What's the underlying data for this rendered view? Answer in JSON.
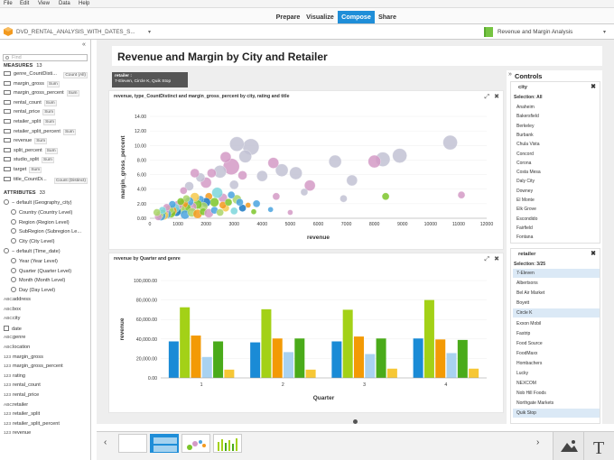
{
  "menu": [
    "File",
    "Edit",
    "View",
    "Data",
    "Help"
  ],
  "nav": {
    "tabs": [
      {
        "label": "Prepare",
        "active": false
      },
      {
        "label": "Visualize",
        "active": false
      },
      {
        "label": "Compose",
        "active": true
      },
      {
        "label": "Share",
        "active": false
      }
    ]
  },
  "doc": {
    "title": "DVD_RENTAL_ANALYSIS_WITH_DATES_S...",
    "story": "Revenue and Margin Analysis"
  },
  "left": {
    "search_placeholder": "Find",
    "measures_label": "MEASURES",
    "measures_count": "13",
    "measures": [
      {
        "name": "genre_CountDisti...",
        "agg": "Count (All)"
      },
      {
        "name": "margin_gross",
        "agg": "Sum"
      },
      {
        "name": "margin_gross_percent",
        "agg": "Sum"
      },
      {
        "name": "rental_count",
        "agg": "Sum"
      },
      {
        "name": "rental_price",
        "agg": "Sum"
      },
      {
        "name": "retailer_split",
        "agg": "Sum"
      },
      {
        "name": "retailer_split_percent",
        "agg": "Sum"
      },
      {
        "name": "revenue",
        "agg": "Sum"
      },
      {
        "name": "split_percent",
        "agg": "Sum"
      },
      {
        "name": "studio_split",
        "agg": "Sum"
      },
      {
        "name": "target",
        "agg": "Sum"
      },
      {
        "name": "title_CountDi...",
        "agg": "Count (Distinct)"
      }
    ],
    "attributes_label": "ATTRIBUTES",
    "attributes_count": "33",
    "geo_group": "default (Geography_city)",
    "geo_items": [
      "Country (Country Level)",
      "Region (Region Level)",
      "SubRegion (Subregion Le...",
      "City (City Level)"
    ],
    "time_group": "default (Time_date)",
    "time_items": [
      "Year (Year Level)",
      "Quarter (Quarter Level)",
      "Month (Month Level)",
      "Day (Day Level)"
    ],
    "attrs": [
      {
        "t": "ABC",
        "name": "address"
      },
      {
        "t": "ABC",
        "name": "box"
      },
      {
        "t": "ABC",
        "name": "city"
      },
      {
        "t": "cal",
        "name": "date"
      },
      {
        "t": "ABC",
        "name": "genre"
      },
      {
        "t": "ABC",
        "name": "location"
      },
      {
        "t": "123",
        "name": "margin_gross"
      },
      {
        "t": "123",
        "name": "margin_gross_percent"
      },
      {
        "t": "123",
        "name": "rating"
      },
      {
        "t": "123",
        "name": "rental_count"
      },
      {
        "t": "123",
        "name": "rental_price"
      },
      {
        "t": "ABC",
        "name": "retailer"
      },
      {
        "t": "123",
        "name": "retailer_split"
      },
      {
        "t": "123",
        "name": "retailer_split_percent"
      },
      {
        "t": "123",
        "name": "revenue"
      }
    ]
  },
  "story_title": "Revenue and Margin by City and Retailer",
  "tooltip": {
    "line1": "retailer :",
    "line2": "7-Eleven, Circle K, Quik Stop"
  },
  "scatter": {
    "title": "revenue, type_CountDistinct and margin_gross_percent by city, rating and title",
    "chart_data": {
      "type": "scatter",
      "xlabel": "revenue",
      "ylabel": "margin_gross_percent",
      "xlim": [
        0,
        12000
      ],
      "ylim": [
        0,
        14
      ],
      "xticks": [
        "0",
        "1000",
        "2000",
        "3000",
        "4000",
        "5000",
        "6000",
        "7000",
        "8000",
        "9000",
        "10000",
        "11000",
        "12000"
      ],
      "yticks": [
        "0.00",
        "2.00",
        "4.00",
        "6.00",
        "8.00",
        "10.00",
        "12.00",
        "14.00"
      ],
      "points": [
        [
          10700,
          10.4,
          8,
          "#c2c2d4"
        ],
        [
          8900,
          8.6,
          8,
          "#c2c2d4"
        ],
        [
          8300,
          8.1,
          8,
          "#c2c2d4"
        ],
        [
          8000,
          7.8,
          7,
          "#d49ac6"
        ],
        [
          7200,
          5.2,
          6,
          "#c2c2d4"
        ],
        [
          6600,
          7.8,
          7,
          "#c2c2d4"
        ],
        [
          5700,
          4.5,
          6,
          "#d49ac6"
        ],
        [
          5200,
          6.2,
          7,
          "#c2c2d4"
        ],
        [
          4700,
          6.6,
          7,
          "#c2c2d4"
        ],
        [
          4400,
          7.6,
          6,
          "#d49ac6"
        ],
        [
          4000,
          5.8,
          6,
          "#c2c2d4"
        ],
        [
          3600,
          9.8,
          9,
          "#c2c2d4"
        ],
        [
          3400,
          8.5,
          7,
          "#c2c2d4"
        ],
        [
          3100,
          10.2,
          8,
          "#c2c2d4"
        ],
        [
          2900,
          7.1,
          9,
          "#d49ac6"
        ],
        [
          2700,
          8.4,
          6,
          "#d49ac6"
        ],
        [
          2500,
          6.4,
          7,
          "#c2c2d4"
        ],
        [
          2200,
          6.2,
          5,
          "#d49ac6"
        ],
        [
          2000,
          4.9,
          6,
          "#d49ac6"
        ],
        [
          1800,
          5.6,
          5,
          "#c2c2d4"
        ],
        [
          1600,
          6.2,
          5,
          "#d49ac6"
        ],
        [
          1400,
          4.4,
          5,
          "#c2c2d4"
        ],
        [
          1200,
          3.8,
          4,
          "#d49ac6"
        ],
        [
          3000,
          4.6,
          5,
          "#c2c2d4"
        ],
        [
          3300,
          5.9,
          5,
          "#d49ac6"
        ],
        [
          8400,
          3.0,
          4,
          "#7cc52a"
        ],
        [
          6900,
          2.7,
          4,
          "#c2c2d4"
        ],
        [
          11100,
          3.2,
          4,
          "#d49ac6"
        ],
        [
          4500,
          3.0,
          4,
          "#d49ac6"
        ],
        [
          5500,
          3.6,
          4,
          "#c2c2d4"
        ],
        [
          3800,
          2.0,
          4,
          "#4aa3df"
        ],
        [
          3500,
          1.8,
          3,
          "#f39a1f"
        ],
        [
          3100,
          2.6,
          5,
          "#aad56a"
        ],
        [
          2900,
          3.2,
          4,
          "#4aa3df"
        ],
        [
          2600,
          2.8,
          5,
          "#d49ac6"
        ],
        [
          2400,
          3.5,
          6,
          "#7dd6dc"
        ],
        [
          2300,
          2.2,
          5,
          "#7cc52a"
        ],
        [
          2100,
          3.0,
          4,
          "#f39a1f"
        ],
        [
          2000,
          2.2,
          5,
          "#1a78c2"
        ],
        [
          1900,
          1.6,
          5,
          "#aad56a"
        ],
        [
          1800,
          2.6,
          4,
          "#4aa3df"
        ],
        [
          1700,
          1.9,
          5,
          "#7cc52a"
        ],
        [
          1600,
          2.9,
          5,
          "#f6c94e"
        ],
        [
          1500,
          1.6,
          5,
          "#d49ac6"
        ],
        [
          1400,
          2.3,
          5,
          "#4aa3df"
        ],
        [
          1300,
          1.4,
          5,
          "#7cc52a"
        ],
        [
          1200,
          2.0,
          5,
          "#f39a1f"
        ],
        [
          1100,
          1.2,
          5,
          "#aad56a"
        ],
        [
          1000,
          1.8,
          5,
          "#d49ac6"
        ],
        [
          950,
          0.9,
          5,
          "#1a78c2"
        ],
        [
          900,
          1.4,
          5,
          "#7dd6dc"
        ],
        [
          800,
          1.0,
          5,
          "#f39a1f"
        ],
        [
          750,
          0.7,
          5,
          "#7cc52a"
        ],
        [
          700,
          1.2,
          5,
          "#aad56a"
        ],
        [
          600,
          0.6,
          5,
          "#4aa3df"
        ],
        [
          550,
          0.9,
          4,
          "#d49ac6"
        ],
        [
          500,
          0.4,
          5,
          "#f6c94e"
        ],
        [
          450,
          0.7,
          4,
          "#7cc52a"
        ],
        [
          400,
          0.3,
          5,
          "#4aa3df"
        ],
        [
          350,
          0.5,
          4,
          "#aad56a"
        ],
        [
          300,
          0.2,
          4,
          "#d49ac6"
        ],
        [
          1250,
          0.5,
          5,
          "#4aa3df"
        ],
        [
          1500,
          0.8,
          5,
          "#aad56a"
        ],
        [
          1700,
          0.6,
          5,
          "#f39a1f"
        ],
        [
          1900,
          0.9,
          4,
          "#7cc52a"
        ],
        [
          2100,
          0.7,
          5,
          "#d49ac6"
        ],
        [
          2300,
          1.1,
          4,
          "#4aa3df"
        ],
        [
          2500,
          0.8,
          4,
          "#aad56a"
        ],
        [
          2700,
          1.4,
          4,
          "#f6c94e"
        ],
        [
          3000,
          1.0,
          4,
          "#7dd6dc"
        ],
        [
          3300,
          1.4,
          4,
          "#1a78c2"
        ],
        [
          3700,
          0.9,
          3,
          "#7cc52a"
        ],
        [
          4300,
          1.2,
          3,
          "#4aa3df"
        ],
        [
          5000,
          0.8,
          3,
          "#d49ac6"
        ],
        [
          2600,
          1.8,
          4,
          "#f39a1f"
        ],
        [
          1300,
          2.7,
          4,
          "#aad56a"
        ],
        [
          1100,
          2.3,
          4,
          "#7cc52a"
        ],
        [
          800,
          1.9,
          4,
          "#4aa3df"
        ],
        [
          600,
          1.5,
          4,
          "#d49ac6"
        ],
        [
          450,
          1.1,
          4,
          "#7dd6dc"
        ],
        [
          250,
          0.8,
          4,
          "#aad56a"
        ],
        [
          2800,
          2.2,
          4,
          "#7cc52a"
        ],
        [
          3200,
          2.2,
          4,
          "#4aa3df"
        ]
      ]
    }
  },
  "bars": {
    "title": "revenue by Quarter and genre",
    "chart_data": {
      "type": "bar",
      "xlabel": "Quarter",
      "ylabel": "revenue",
      "categories": [
        "1",
        "2",
        "3",
        "4"
      ],
      "ylim": [
        0,
        100000
      ],
      "yticks": [
        "0.00",
        "20,000.00",
        "40,000.00",
        "60,000.00",
        "80,000.00",
        "100,000.00"
      ],
      "colors": [
        "#1a8bd6",
        "#a3d117",
        "#f39a05",
        "#a9d2f0",
        "#4aab1a",
        "#f6c735"
      ],
      "series": [
        {
          "values": [
            37500,
            36500,
            37500,
            40500
          ]
        },
        {
          "values": [
            72500,
            70500,
            70000,
            80000
          ]
        },
        {
          "values": [
            43500,
            40500,
            42500,
            39500
          ]
        },
        {
          "values": [
            21500,
            26500,
            24500,
            25500
          ]
        },
        {
          "values": [
            37500,
            40500,
            40500,
            39000
          ]
        },
        {
          "values": [
            8500,
            8500,
            9500,
            9500
          ]
        }
      ]
    }
  },
  "controls": {
    "title": "Controls",
    "city": {
      "label": "city",
      "selection": "Selection: All",
      "items": [
        "Anaheim",
        "Bakersfield",
        "Berkeley",
        "Burbank",
        "Chula Vista",
        "Concord",
        "Corona",
        "Costa Mesa",
        "Daly City",
        "Downey",
        "El Monte",
        "Elk Grove",
        "Escondido",
        "Fairfield",
        "Fontana"
      ]
    },
    "retailer": {
      "label": "retailer",
      "selection": "Selection: 3/25",
      "items": [
        {
          "n": "7-Eleven",
          "s": true
        },
        {
          "n": "Albertsons",
          "s": false
        },
        {
          "n": "Bel Air Market",
          "s": false
        },
        {
          "n": "Boyett",
          "s": false
        },
        {
          "n": "Circle K",
          "s": true
        },
        {
          "n": "Exxon Mobil",
          "s": false
        },
        {
          "n": "Fastrip",
          "s": false
        },
        {
          "n": "Food Source",
          "s": false
        },
        {
          "n": "FoodMaxx",
          "s": false
        },
        {
          "n": "Hombachers",
          "s": false
        },
        {
          "n": "Lucky",
          "s": false
        },
        {
          "n": "NEXCOM",
          "s": false
        },
        {
          "n": "Nob Hill Foods",
          "s": false
        },
        {
          "n": "Northgate Markets",
          "s": false
        },
        {
          "n": "Quik Stop",
          "s": true
        }
      ]
    }
  }
}
